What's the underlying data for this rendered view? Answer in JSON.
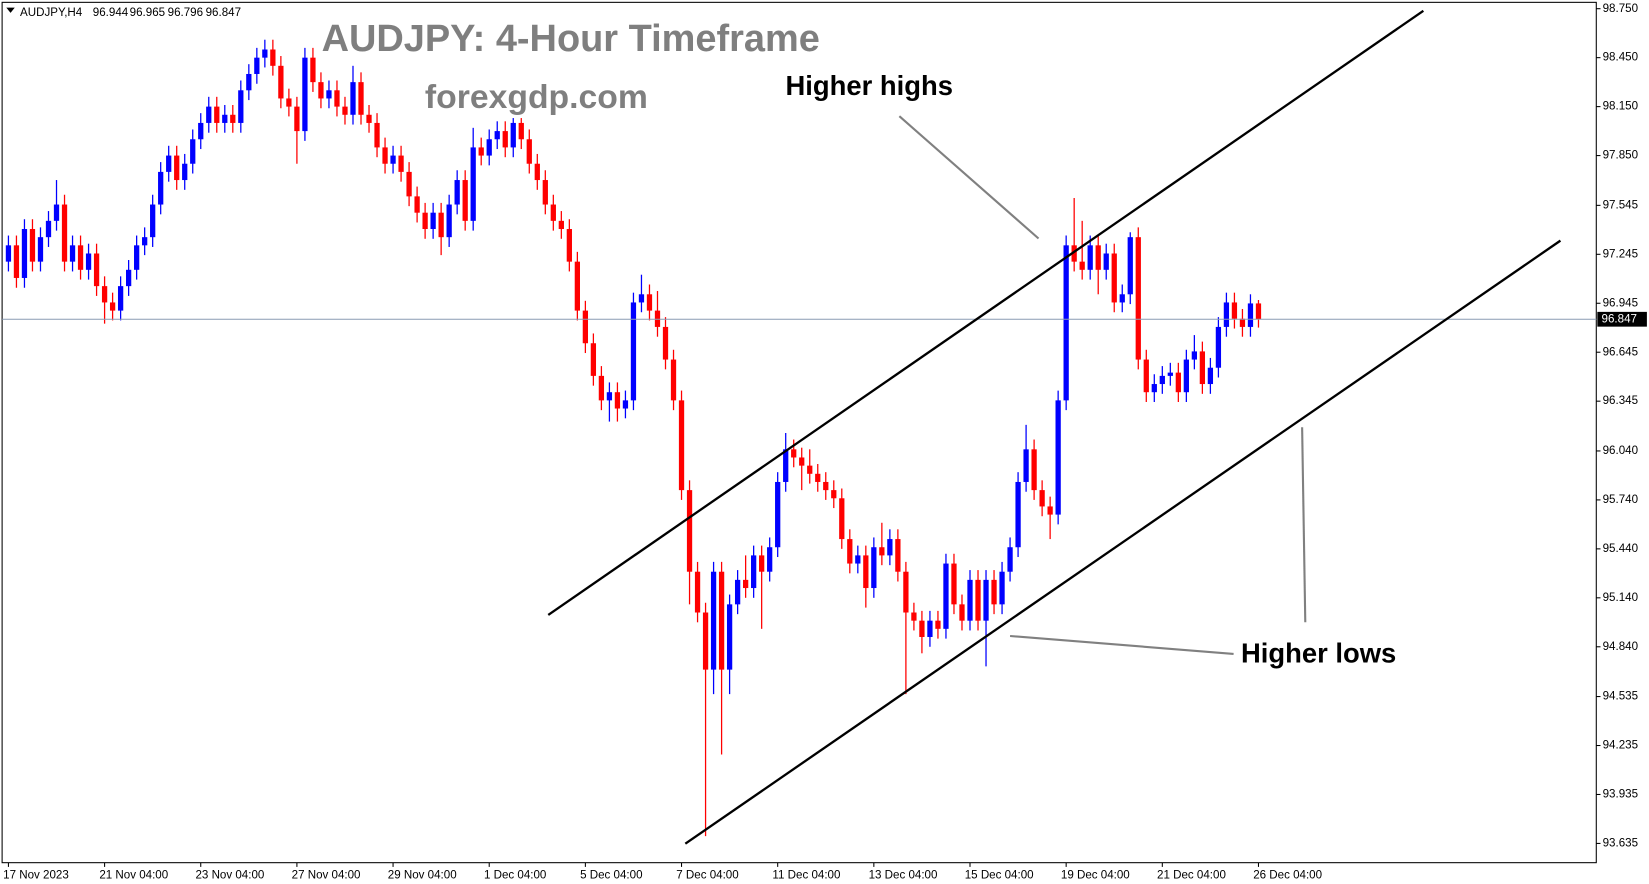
{
  "chart_data": {
    "type": "candlestick",
    "symbol": "AUDJPY,H4",
    "title": "AUDJPY: 4-Hour Timeframe",
    "subtitle": "forexgdp.com",
    "annotations": [
      {
        "text": "Higher highs"
      },
      {
        "text": "Higher lows"
      }
    ],
    "up_color": "#0000ff",
    "down_color": "#ff0000",
    "price_line_color": "#8a9cb4",
    "grid": false,
    "ylim": [
      93.517,
      98.789
    ],
    "yticks": [
      {
        "value": 98.75,
        "label": "98.750"
      },
      {
        "value": 98.45,
        "label": "98.450"
      },
      {
        "value": 98.15,
        "label": "98.150"
      },
      {
        "value": 97.85,
        "label": "97.850"
      },
      97.545,
      97.245,
      96.945,
      96.645,
      96.345,
      {
        "value": 96.04,
        "label": "96.040"
      },
      {
        "value": 95.74,
        "label": "95.740"
      },
      {
        "value": 95.44,
        "label": "95.440"
      },
      {
        "value": 95.14,
        "label": "95.140"
      },
      {
        "value": 94.84,
        "label": "94.840"
      },
      94.535,
      94.235,
      93.935,
      93.635
    ],
    "categories": [
      "17 Nov 2023",
      null,
      null,
      null,
      null,
      null,
      null,
      null,
      null,
      null,
      null,
      null,
      "21 Nov 04:00",
      null,
      null,
      null,
      null,
      null,
      null,
      null,
      null,
      null,
      null,
      null,
      "23 Nov 04:00",
      null,
      null,
      null,
      null,
      null,
      null,
      null,
      null,
      null,
      null,
      null,
      "27 Nov 04:00",
      null,
      null,
      null,
      null,
      null,
      null,
      null,
      null,
      null,
      null,
      null,
      "29 Nov 04:00",
      null,
      null,
      null,
      null,
      null,
      null,
      null,
      null,
      null,
      null,
      null,
      "1 Dec 04:00",
      null,
      null,
      null,
      null,
      null,
      null,
      null,
      null,
      null,
      null,
      null,
      "5 Dec 04:00",
      null,
      null,
      null,
      null,
      null,
      null,
      null,
      null,
      null,
      null,
      null,
      "7 Dec 04:00",
      null,
      null,
      null,
      null,
      null,
      null,
      null,
      null,
      null,
      null,
      null,
      "11 Dec 04:00",
      null,
      null,
      null,
      null,
      null,
      null,
      null,
      null,
      null,
      null,
      null,
      "13 Dec 04:00",
      null,
      null,
      null,
      null,
      null,
      null,
      null,
      null,
      null,
      null,
      null,
      "15 Dec 04:00",
      null,
      null,
      null,
      null,
      null,
      null,
      null,
      null,
      null,
      null,
      null,
      "19 Dec 04:00",
      null,
      null,
      null,
      null,
      null,
      null,
      null,
      null,
      null,
      null,
      null,
      "21 Dec 04:00",
      null,
      null,
      null,
      null,
      null,
      null,
      null,
      null,
      null,
      null,
      null,
      "26 Dec 04:00"
    ],
    "open": [
      97.2,
      97.3,
      97.1,
      97.4,
      97.2,
      97.35,
      97.45,
      97.55,
      97.2,
      97.3,
      97.15,
      97.25,
      97.05,
      96.95,
      96.9,
      97.05,
      97.15,
      97.3,
      97.35,
      97.55,
      97.75,
      97.85,
      97.7,
      97.8,
      97.95,
      98.05,
      98.15,
      98.05,
      98.1,
      98.05,
      98.25,
      98.35,
      98.45,
      98.5,
      98.4,
      98.2,
      98.15,
      98.0,
      98.45,
      98.3,
      98.2,
      98.25,
      98.15,
      98.1,
      98.3,
      98.1,
      98.05,
      97.9,
      97.8,
      97.85,
      97.75,
      97.6,
      97.5,
      97.4,
      97.5,
      97.35,
      97.55,
      97.7,
      97.45,
      97.9,
      97.85,
      97.95,
      98.0,
      97.9,
      98.05,
      97.95,
      97.8,
      97.7,
      97.55,
      97.45,
      97.4,
      97.2,
      96.9,
      96.7,
      96.5,
      96.35,
      96.4,
      96.3,
      96.35,
      96.95,
      97.0,
      96.9,
      96.8,
      96.6,
      96.35,
      95.8,
      95.3,
      95.05,
      94.7,
      95.3,
      94.7,
      95.1,
      95.25,
      95.2,
      95.4,
      95.3,
      95.45,
      95.85,
      96.05,
      96.0,
      95.95,
      95.9,
      95.85,
      95.8,
      95.75,
      95.5,
      95.35,
      95.4,
      95.2,
      95.45,
      95.4,
      95.5,
      95.3,
      95.05,
      95.0,
      94.9,
      95.0,
      94.95,
      95.35,
      95.1,
      95.0,
      95.25,
      95.0,
      95.25,
      95.1,
      95.3,
      95.45,
      95.85,
      96.05,
      95.8,
      95.7,
      95.65,
      96.35,
      97.3,
      97.2,
      97.15,
      97.3,
      97.15,
      97.25,
      96.95,
      97.0,
      97.35,
      96.6,
      96.4,
      96.45,
      96.5,
      96.52,
      96.4,
      96.6,
      96.65,
      96.45,
      96.55,
      96.8,
      96.95,
      96.85,
      96.8,
      96.944
    ],
    "high": [
      97.36,
      97.36,
      97.46,
      97.46,
      97.41,
      97.51,
      97.7,
      97.61,
      97.36,
      97.36,
      97.31,
      97.31,
      97.11,
      97.01,
      97.11,
      97.21,
      97.36,
      97.41,
      97.61,
      97.81,
      97.91,
      97.91,
      97.86,
      98.01,
      98.11,
      98.21,
      98.21,
      98.16,
      98.16,
      98.31,
      98.41,
      98.51,
      98.56,
      98.56,
      98.46,
      98.26,
      98.21,
      98.51,
      98.51,
      98.36,
      98.31,
      98.31,
      98.21,
      98.4,
      98.36,
      98.16,
      98.11,
      97.96,
      97.91,
      97.91,
      97.81,
      97.66,
      97.56,
      97.56,
      97.56,
      97.61,
      97.76,
      97.76,
      98.02,
      97.96,
      98.01,
      98.06,
      98.06,
      98.08,
      98.08,
      98.01,
      97.86,
      97.76,
      97.61,
      97.51,
      97.46,
      97.26,
      96.96,
      96.76,
      96.56,
      96.46,
      96.46,
      96.41,
      97.01,
      97.12,
      97.06,
      97.02,
      96.86,
      96.66,
      96.41,
      95.86,
      95.36,
      95.11,
      95.36,
      95.36,
      95.16,
      95.31,
      95.4,
      95.46,
      95.46,
      95.51,
      95.91,
      96.15,
      96.11,
      96.06,
      96.05,
      95.96,
      95.91,
      95.86,
      95.81,
      95.56,
      95.46,
      95.46,
      95.51,
      95.6,
      95.56,
      95.56,
      95.36,
      95.11,
      95.06,
      95.06,
      95.06,
      95.41,
      95.41,
      95.16,
      95.31,
      95.31,
      95.31,
      95.31,
      95.36,
      95.51,
      95.91,
      96.2,
      96.11,
      95.86,
      95.76,
      96.41,
      97.36,
      97.59,
      97.45,
      97.36,
      97.36,
      97.31,
      97.31,
      97.06,
      97.38,
      97.41,
      96.66,
      96.51,
      96.56,
      96.58,
      96.58,
      96.66,
      96.75,
      96.71,
      96.61,
      96.86,
      97.01,
      97.01,
      96.91,
      97.0,
      96.965
    ],
    "low": [
      97.14,
      97.04,
      97.04,
      97.14,
      97.14,
      97.29,
      97.39,
      97.14,
      97.14,
      97.09,
      97.09,
      96.99,
      96.82,
      96.84,
      96.84,
      96.99,
      97.09,
      97.24,
      97.29,
      97.49,
      97.69,
      97.64,
      97.64,
      97.74,
      97.89,
      97.99,
      97.99,
      97.99,
      97.99,
      97.99,
      98.19,
      98.29,
      98.39,
      98.34,
      98.14,
      98.09,
      97.8,
      97.94,
      98.24,
      98.14,
      98.14,
      98.09,
      98.04,
      98.04,
      98.04,
      97.99,
      97.84,
      97.74,
      97.74,
      97.69,
      97.54,
      97.44,
      97.34,
      97.34,
      97.24,
      97.29,
      97.49,
      97.39,
      97.39,
      97.79,
      97.79,
      97.89,
      97.84,
      97.84,
      97.89,
      97.74,
      97.64,
      97.49,
      97.39,
      97.34,
      97.14,
      96.84,
      96.64,
      96.44,
      96.29,
      96.22,
      96.22,
      96.24,
      96.29,
      96.89,
      96.84,
      96.74,
      96.54,
      96.29,
      95.74,
      95.1,
      94.99,
      93.68,
      94.55,
      94.18,
      94.55,
      95.04,
      95.14,
      95.14,
      94.95,
      95.24,
      95.39,
      95.79,
      95.94,
      95.8,
      95.84,
      95.79,
      95.74,
      95.69,
      95.44,
      95.29,
      95.29,
      95.08,
      95.14,
      95.34,
      95.34,
      95.24,
      94.55,
      94.94,
      94.8,
      94.84,
      94.89,
      94.89,
      95.04,
      94.94,
      94.94,
      94.94,
      94.72,
      95.04,
      95.04,
      95.24,
      95.39,
      95.79,
      95.74,
      95.64,
      95.5,
      95.59,
      96.29,
      97.14,
      97.09,
      97.09,
      97.0,
      97.09,
      96.89,
      96.89,
      96.94,
      96.54,
      96.34,
      96.34,
      96.39,
      96.44,
      96.34,
      96.34,
      96.54,
      96.39,
      96.39,
      96.49,
      96.74,
      96.79,
      96.74,
      96.74,
      96.796
    ],
    "close": [
      97.3,
      97.1,
      97.4,
      97.2,
      97.35,
      97.45,
      97.55,
      97.2,
      97.3,
      97.15,
      97.25,
      97.05,
      96.95,
      96.9,
      97.05,
      97.15,
      97.3,
      97.35,
      97.55,
      97.75,
      97.85,
      97.7,
      97.8,
      97.95,
      98.05,
      98.15,
      98.05,
      98.1,
      98.05,
      98.25,
      98.35,
      98.45,
      98.5,
      98.4,
      98.2,
      98.15,
      98.0,
      98.45,
      98.3,
      98.2,
      98.25,
      98.15,
      98.1,
      98.3,
      98.1,
      98.05,
      97.9,
      97.8,
      97.85,
      97.75,
      97.6,
      97.5,
      97.4,
      97.5,
      97.35,
      97.55,
      97.7,
      97.45,
      97.9,
      97.85,
      97.95,
      98.0,
      97.9,
      98.05,
      97.95,
      97.8,
      97.7,
      97.55,
      97.45,
      97.4,
      97.2,
      96.9,
      96.7,
      96.5,
      96.35,
      96.4,
      96.3,
      96.35,
      96.95,
      97.0,
      96.9,
      96.8,
      96.6,
      96.35,
      95.8,
      95.3,
      95.05,
      94.7,
      95.3,
      94.7,
      95.1,
      95.25,
      95.2,
      95.4,
      95.3,
      95.45,
      95.85,
      96.05,
      96.0,
      95.95,
      95.9,
      95.85,
      95.8,
      95.75,
      95.5,
      95.35,
      95.4,
      95.2,
      95.45,
      95.4,
      95.5,
      95.3,
      95.05,
      95.0,
      94.9,
      95.0,
      94.95,
      95.35,
      95.1,
      95.0,
      95.25,
      95.0,
      95.25,
      95.1,
      95.3,
      95.45,
      95.85,
      96.05,
      95.8,
      95.7,
      95.65,
      96.35,
      97.3,
      97.2,
      97.15,
      97.3,
      97.15,
      97.25,
      96.95,
      97.0,
      97.35,
      96.6,
      96.4,
      96.45,
      96.5,
      96.52,
      96.4,
      96.6,
      96.65,
      96.45,
      96.55,
      96.8,
      96.95,
      96.85,
      96.8,
      96.944,
      96.847
    ]
  }
}
